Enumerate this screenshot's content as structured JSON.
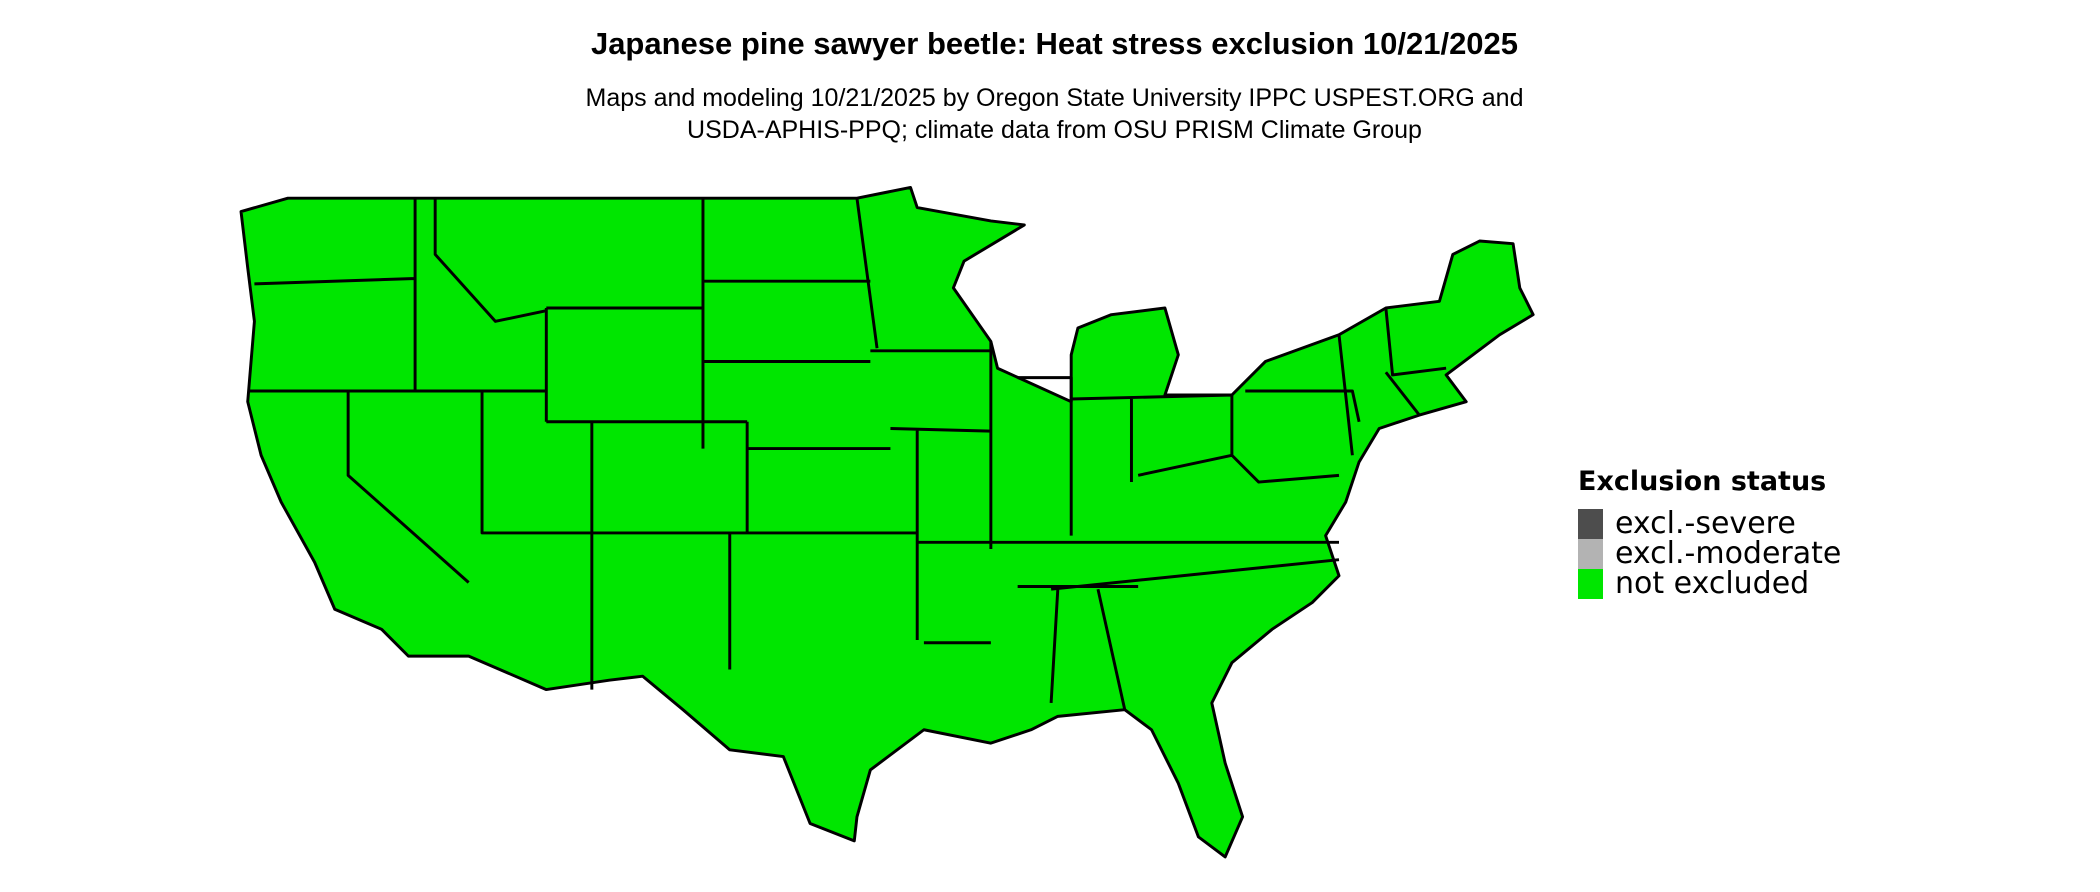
{
  "title": "Japanese pine sawyer beetle: Heat stress exclusion 10/21/2025",
  "subtitle_line1": "Maps and modeling 10/21/2025 by Oregon State University IPPC USPEST.ORG and",
  "subtitle_line2": "USDA-APHIS-PPQ; climate data from OSU PRISM Climate Group",
  "legend": {
    "title": "Exclusion status",
    "items": [
      {
        "label": "excl.-severe",
        "color": "#4d4d4d"
      },
      {
        "label": "excl.-moderate",
        "color": "#b3b3b3"
      },
      {
        "label": "not excluded",
        "color": "#00e600"
      }
    ]
  },
  "map": {
    "region": "Contiguous United States",
    "fill_color": "#00e600",
    "border_color": "#000000"
  }
}
